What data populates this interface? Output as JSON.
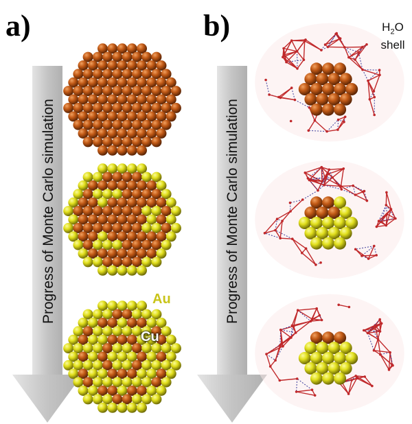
{
  "panels": [
    {
      "label": "a)"
    },
    {
      "label": "b)"
    }
  ],
  "arrow_text": "Progress of Monte Carlo simulation",
  "labels": {
    "au": "Au",
    "cu": "Cu",
    "shell_formula_h": "H",
    "shell_formula_sub": "2",
    "shell_formula_o": "O",
    "shell_word": "shell"
  },
  "colors": {
    "copper": "#c25a16",
    "gold": "#e1df1c",
    "au_label": "#c9c41a",
    "cu_label": "#ffffff",
    "arrow": "#c8c8c8",
    "water_red": "#c0282a",
    "water_blue": "#3a3a9a"
  }
}
